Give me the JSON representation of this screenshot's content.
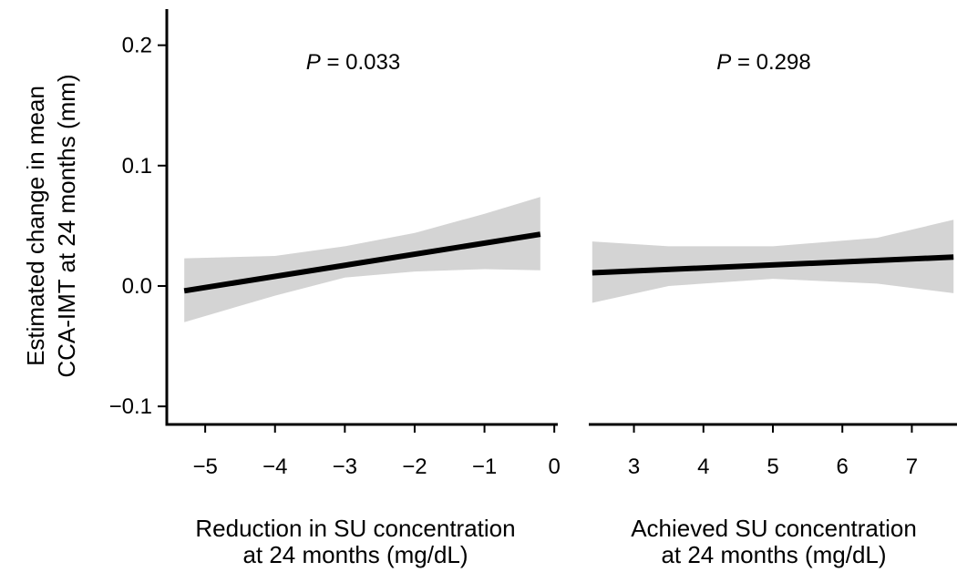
{
  "chart_data": [
    {
      "type": "line",
      "panel": "left",
      "annotation": {
        "italic": "P",
        "rest": " = 0.033"
      },
      "ylabel": [
        "Estimated change in mean",
        "CCA-IMT at 24 months (mm)"
      ],
      "xlabel": [
        "Reduction in SU concentration",
        "at 24 months (mg/dL)"
      ],
      "xlim": [
        -5.55,
        0.05
      ],
      "ylim": [
        -0.115,
        0.23
      ],
      "xticks": [
        -5,
        -4,
        -3,
        -2,
        -1,
        0
      ],
      "xtick_labels": [
        "−5",
        "−4",
        "−3",
        "−2",
        "−1",
        "0"
      ],
      "yticks": [
        0.2,
        0.1,
        0.0,
        -0.1
      ],
      "ytick_labels": [
        "0.2",
        "0.1",
        "0.0",
        "−0.1"
      ],
      "grid": false,
      "fit": {
        "x": [
          -5.3,
          -0.2
        ],
        "y": [
          -0.004,
          0.043
        ]
      },
      "ci_band": {
        "x": [
          -5.3,
          -4.0,
          -3.0,
          -2.0,
          -1.0,
          -0.2
        ],
        "upper": [
          0.023,
          0.025,
          0.033,
          0.044,
          0.06,
          0.074
        ],
        "lower": [
          -0.03,
          -0.008,
          0.007,
          0.012,
          0.014,
          0.013
        ]
      },
      "colors": {
        "line": "#000000",
        "band": "#d4d4d4"
      }
    },
    {
      "type": "line",
      "panel": "right",
      "annotation": {
        "italic": "P",
        "rest": " = 0.298"
      },
      "xlabel": [
        "Achieved SU concentration",
        "at 24 months (mg/dL)"
      ],
      "xlim": [
        2.35,
        7.65
      ],
      "ylim": [
        -0.115,
        0.23
      ],
      "xticks": [
        3,
        4,
        5,
        6,
        7
      ],
      "xtick_labels": [
        "3",
        "4",
        "5",
        "6",
        "7"
      ],
      "grid": false,
      "fit": {
        "x": [
          2.4,
          7.6
        ],
        "y": [
          0.011,
          0.024
        ]
      },
      "ci_band": {
        "x": [
          2.4,
          3.5,
          5.0,
          6.5,
          7.6
        ],
        "upper": [
          0.037,
          0.033,
          0.033,
          0.04,
          0.055
        ],
        "lower": [
          -0.014,
          0.0,
          0.006,
          0.002,
          -0.006
        ]
      },
      "colors": {
        "line": "#000000",
        "band": "#d4d4d4"
      }
    }
  ]
}
